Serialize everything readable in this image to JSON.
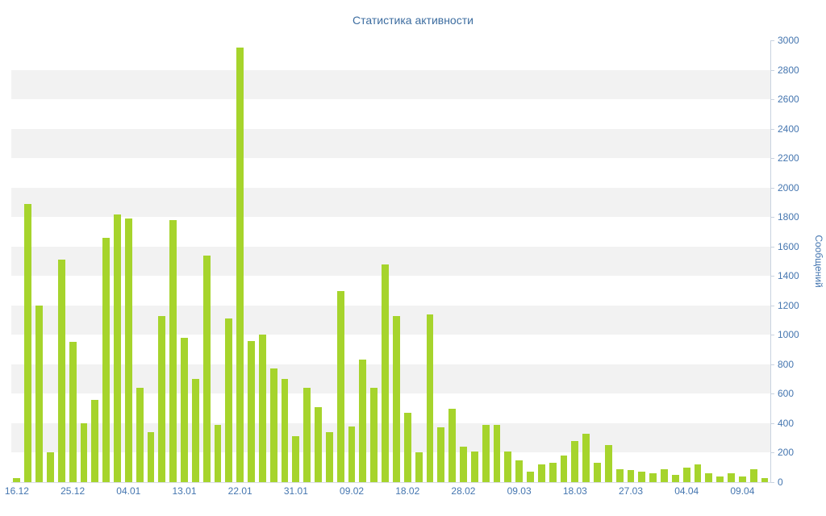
{
  "colors": {
    "bar": "#a6d42c",
    "band": "#f2f2f2",
    "axis": "#c9d3e0",
    "axis2": "#d8dde4",
    "text": "#4576b0",
    "title": "#3d6da0"
  },
  "chart_data": {
    "type": "bar",
    "title": "Статистика активности",
    "xlabel": "",
    "ylabel": "Сообщений",
    "ylim": [
      0,
      3000
    ],
    "y_tick_step": 200,
    "grid": "horizontal-alternating-bands",
    "legend": "none",
    "x_tick_labels": [
      "16.12",
      "25.12",
      "04.01",
      "13.01",
      "22.01",
      "31.01",
      "09.02",
      "18.02",
      "28.02",
      "09.03",
      "18.03",
      "27.03",
      "04.04",
      "09.04"
    ],
    "x_tick_indices": [
      0,
      5,
      10,
      15,
      20,
      25,
      30,
      35,
      40,
      45,
      50,
      55,
      60,
      65
    ],
    "values": [
      30,
      1890,
      1200,
      200,
      1510,
      950,
      400,
      560,
      1660,
      1820,
      1790,
      640,
      340,
      1130,
      1780,
      980,
      700,
      1540,
      390,
      1110,
      2950,
      960,
      1000,
      770,
      700,
      310,
      640,
      510,
      340,
      1300,
      380,
      830,
      640,
      1480,
      1130,
      470,
      200,
      1140,
      370,
      500,
      240,
      210,
      390,
      390,
      210,
      150,
      70,
      120,
      130,
      180,
      280,
      330,
      130,
      250,
      90,
      80,
      70,
      60,
      90,
      50,
      100,
      120,
      60,
      40,
      60,
      40,
      90,
      30
    ]
  }
}
